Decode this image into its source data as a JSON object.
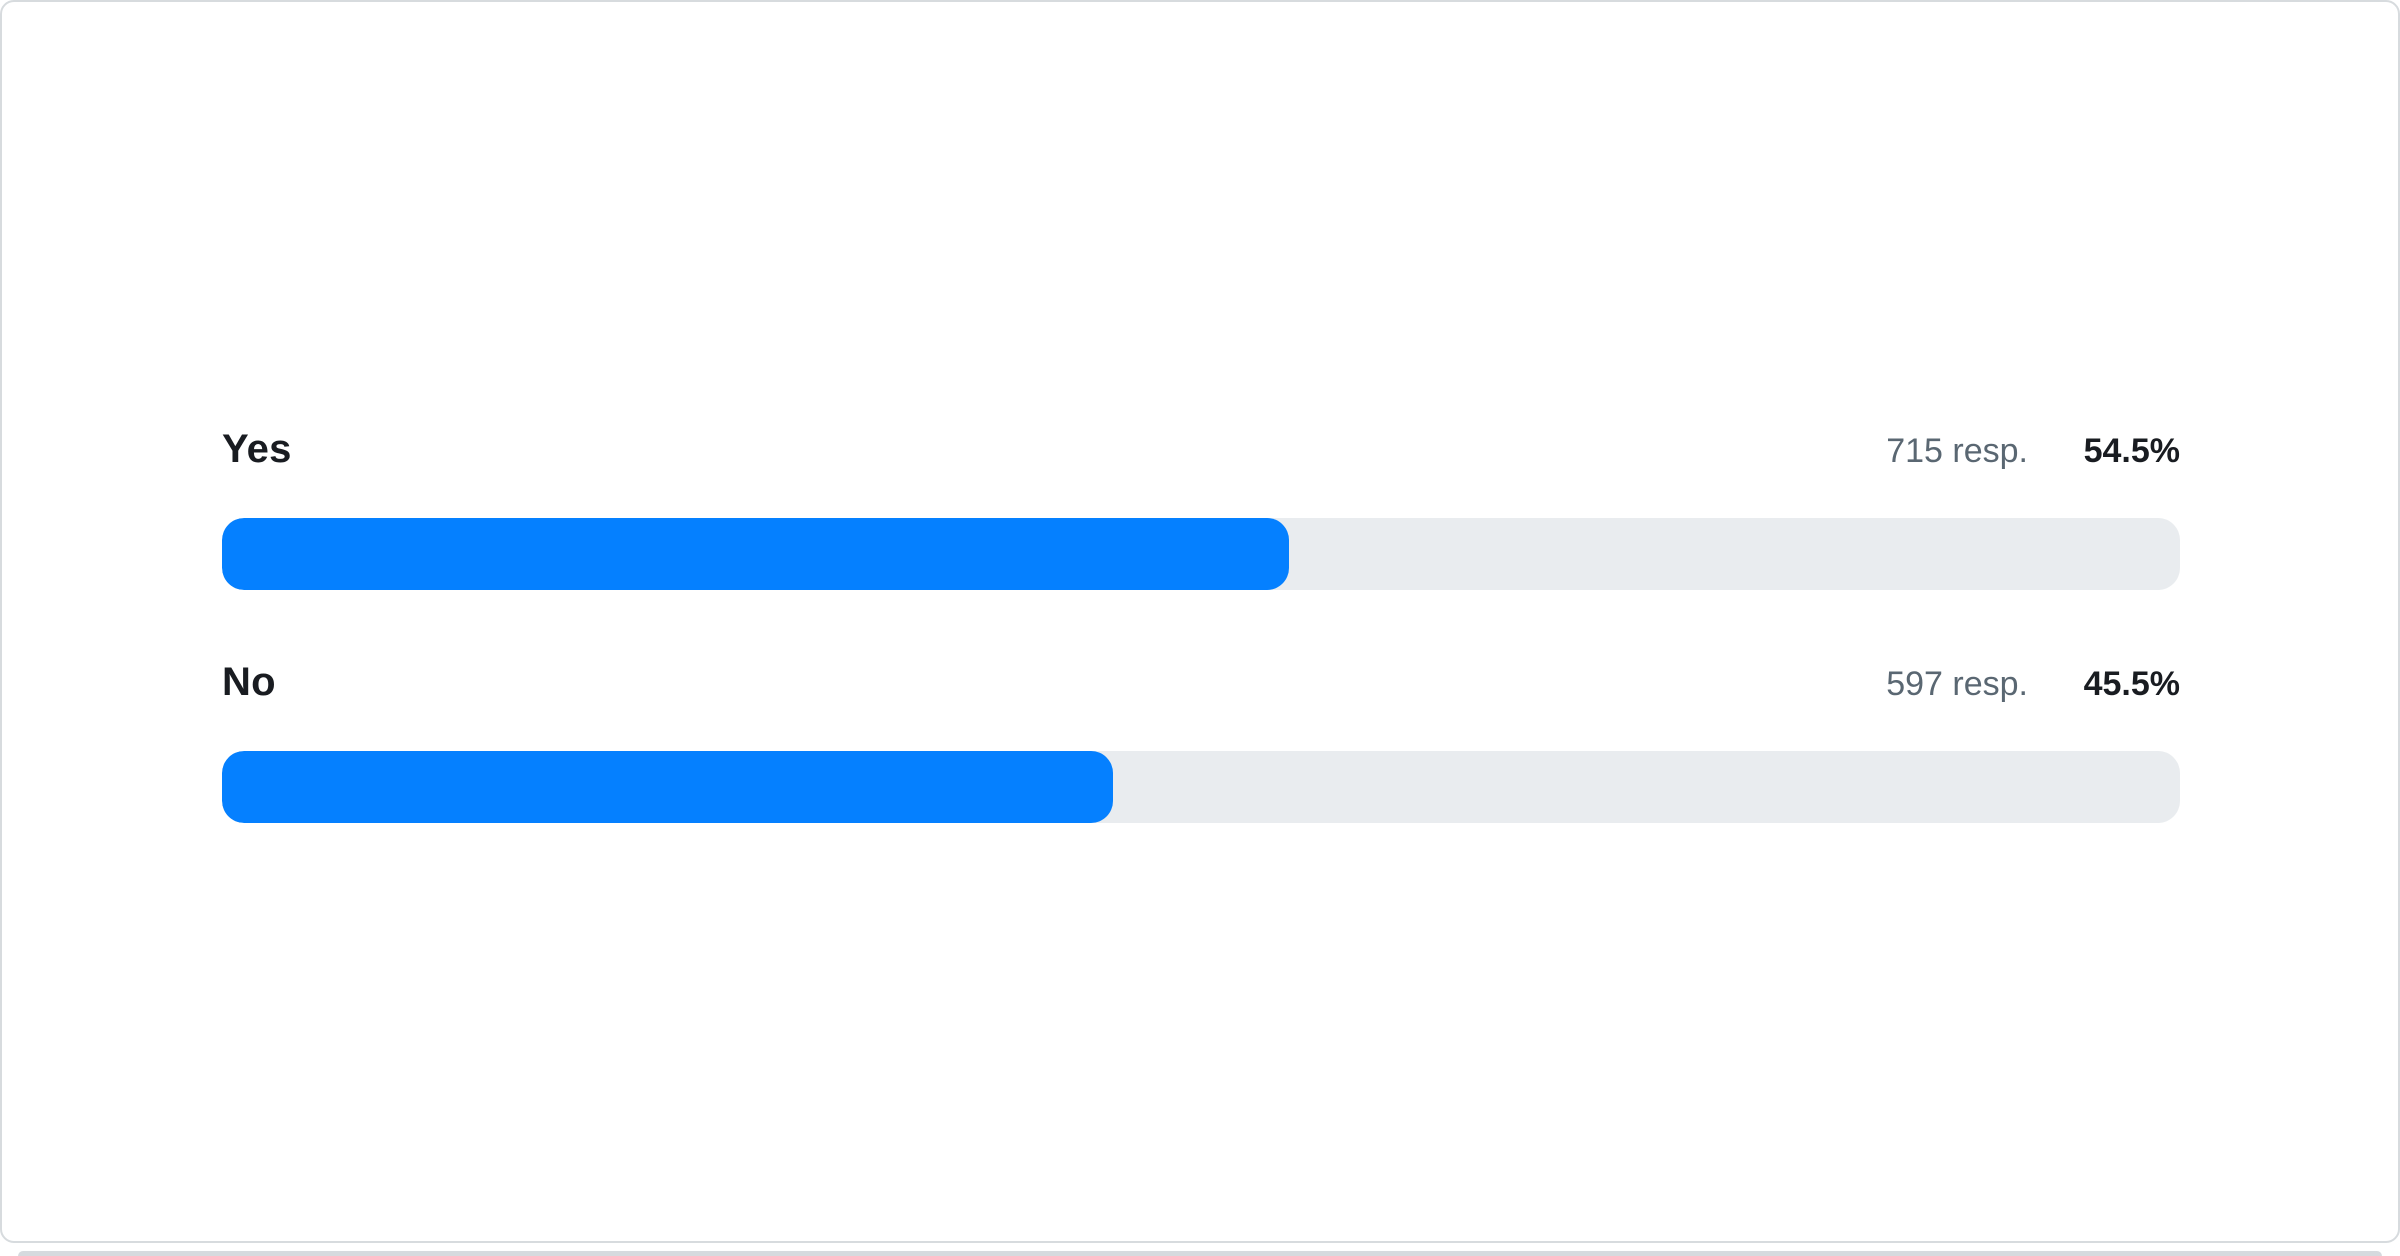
{
  "ui": {
    "accent_color": "#0580ff",
    "track_color": "#e9ecef",
    "label_color": "#191c21",
    "muted_text_color": "#5a6772",
    "card_border_color": "#d7dbde"
  },
  "chart_data": {
    "type": "bar",
    "orientation": "horizontal",
    "categories": [
      "Yes",
      "No"
    ],
    "series": [
      {
        "name": "responses",
        "values": [
          715,
          597
        ]
      }
    ],
    "percentages": [
      54.5,
      45.5
    ],
    "title": "",
    "xlabel": "",
    "ylabel": "",
    "xlim": [
      0,
      100
    ],
    "grid": false,
    "legend": false
  },
  "rows": [
    {
      "label": "Yes",
      "responses_text": "715 resp.",
      "percent_text": "54.5%",
      "percent_value": 54.5
    },
    {
      "label": "No",
      "responses_text": "597 resp.",
      "percent_text": "45.5%",
      "percent_value": 45.5
    }
  ]
}
